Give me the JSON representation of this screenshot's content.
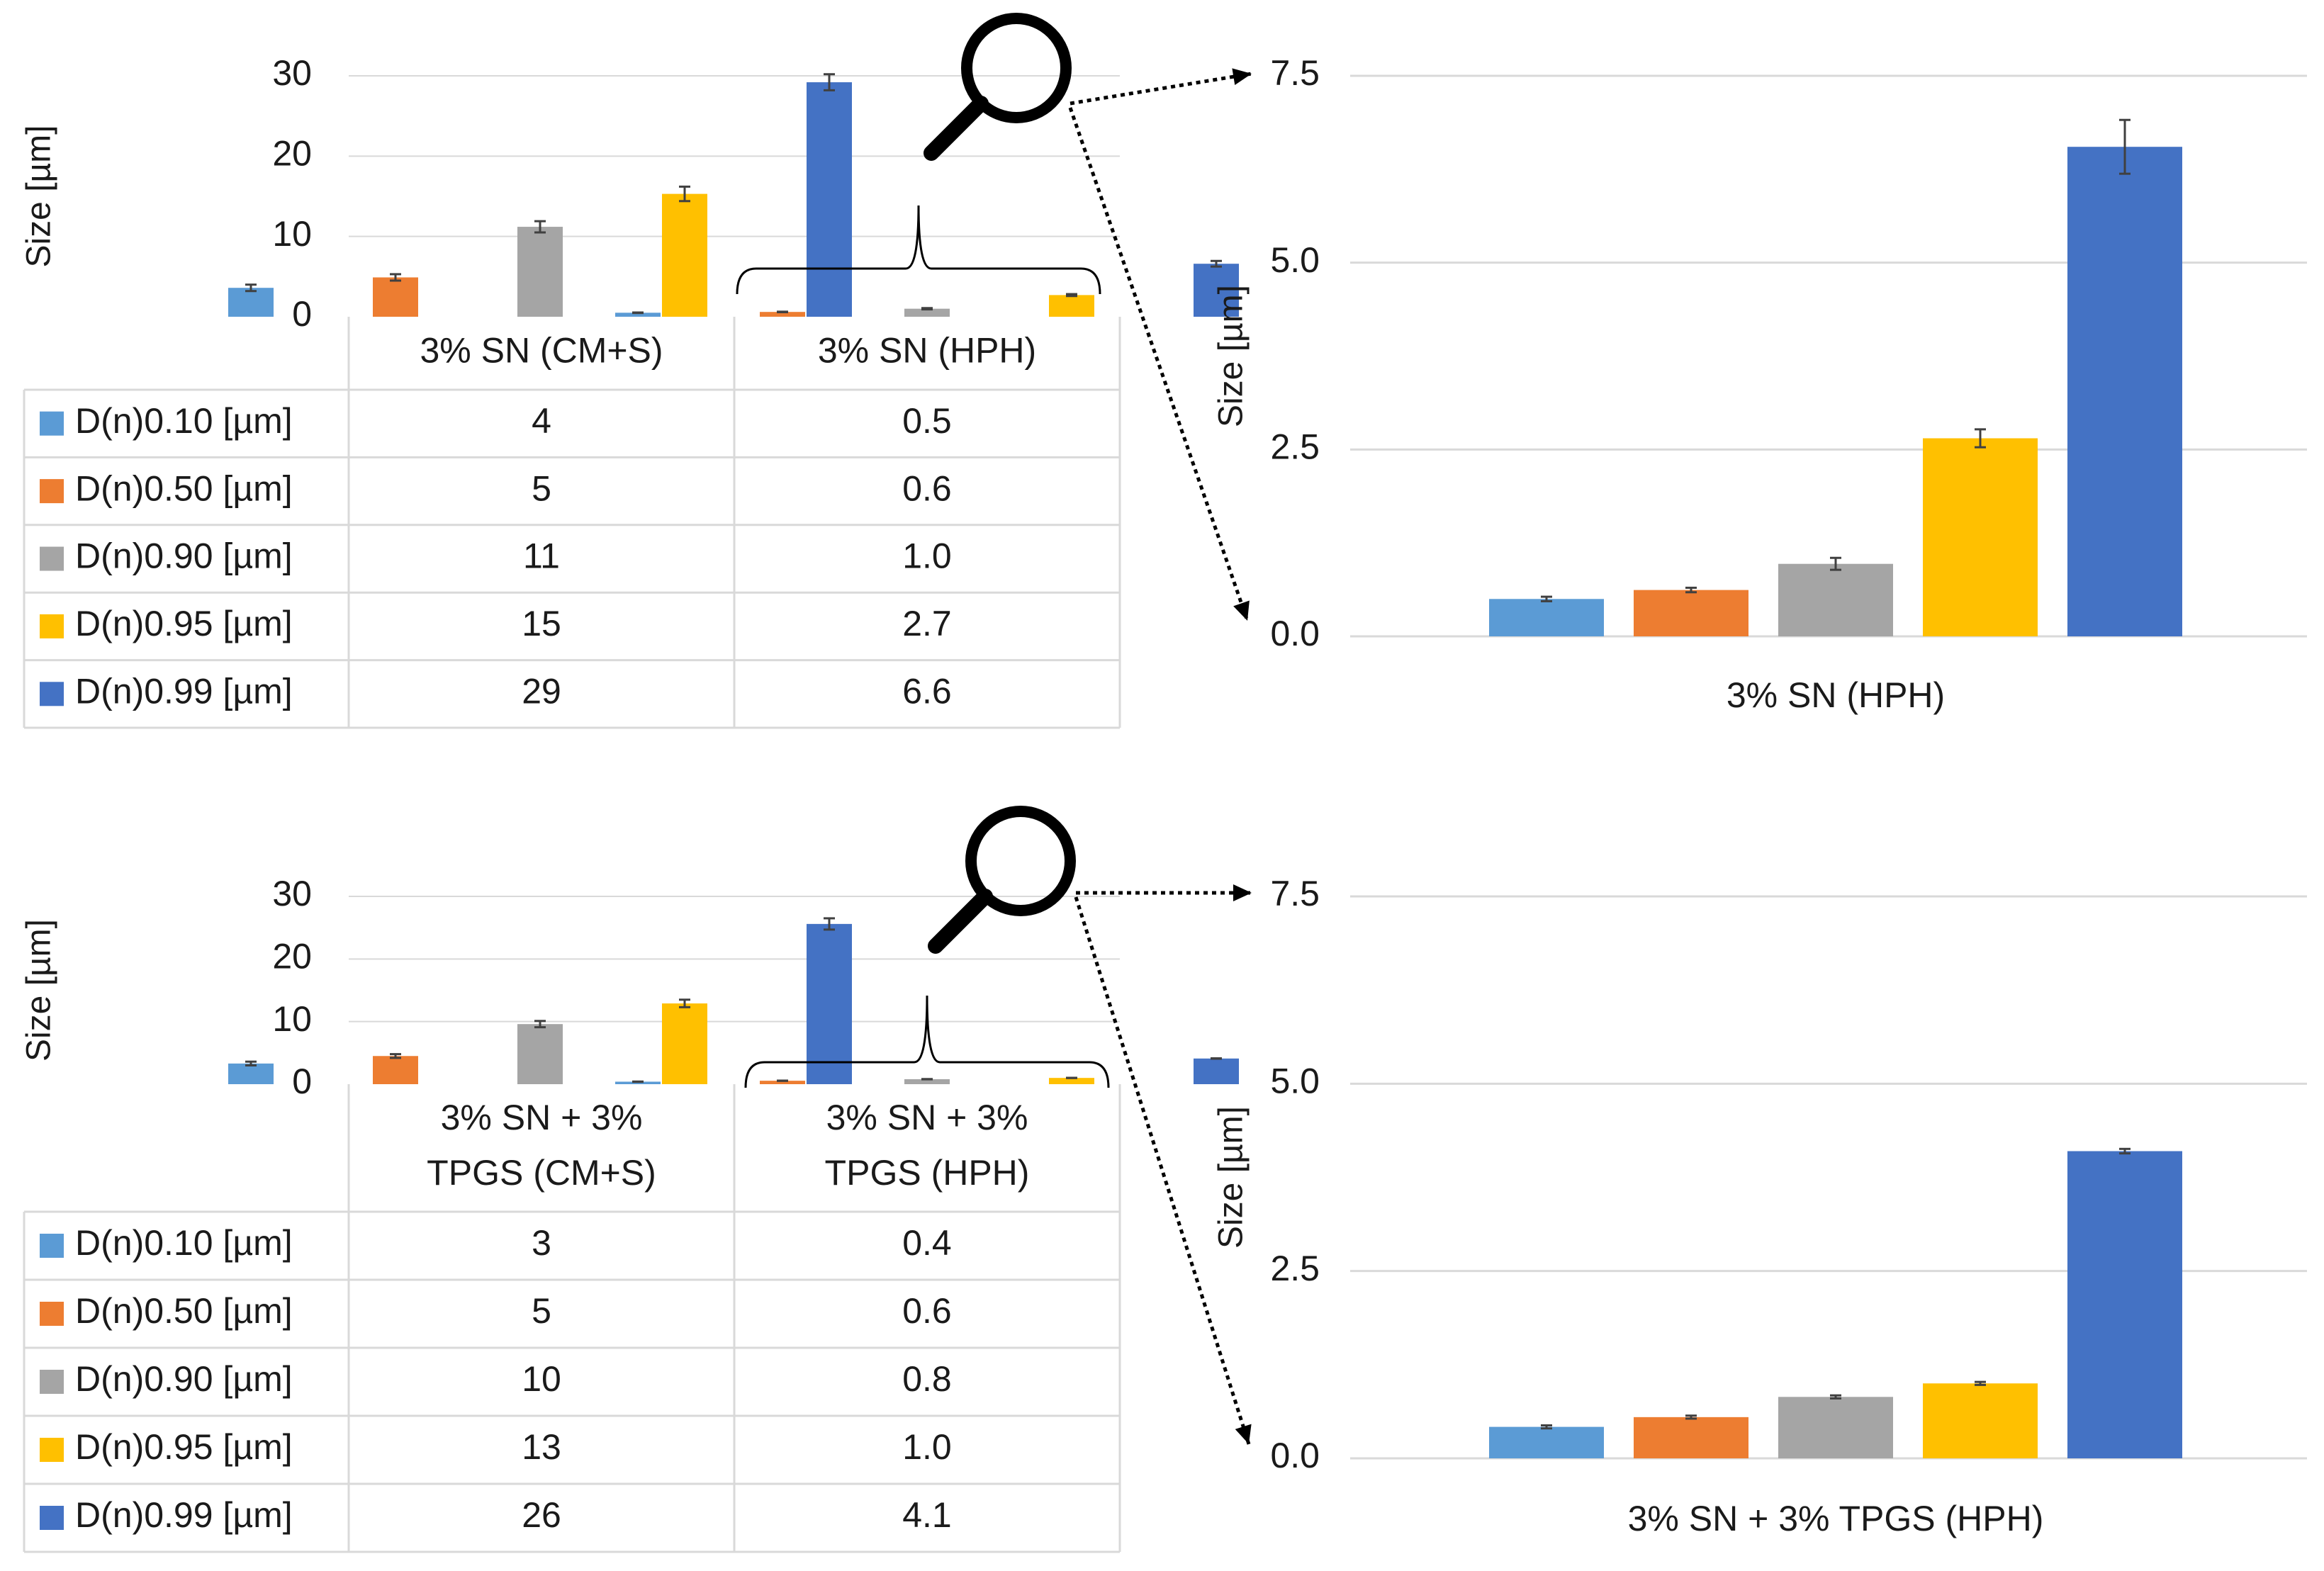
{
  "colors": {
    "d10": "#5B9BD5",
    "d50": "#ED7D31",
    "d90": "#A5A5A5",
    "d95": "#FFC000",
    "d99": "#4472C4",
    "grid": "#D9D9D9",
    "axis_text": "#1a1a1a",
    "error_bar": "#404040"
  },
  "chart_data": [
    {
      "id": "sn_overview",
      "type": "bar",
      "ylabel": "Size [µm]",
      "ylim": [
        0,
        30
      ],
      "yticks": [
        "0",
        "10",
        "20",
        "30"
      ],
      "groups": [
        "3% SN (CM+S)",
        "3% SN (HPH)"
      ],
      "series": [
        {
          "name": "D(n)0.10 [µm]",
          "color_key": "d10",
          "values": [
            3.6,
            0.5
          ],
          "errors": [
            0.4,
            0.03
          ],
          "labels": [
            "4",
            "0.5"
          ]
        },
        {
          "name": "D(n)0.50 [µm]",
          "color_key": "d50",
          "values": [
            4.9,
            0.6
          ],
          "errors": [
            0.4,
            0.03
          ],
          "labels": [
            "5",
            "0.6"
          ]
        },
        {
          "name": "D(n)0.90 [µm]",
          "color_key": "d90",
          "values": [
            11.2,
            1.0
          ],
          "errors": [
            0.7,
            0.08
          ],
          "labels": [
            "11",
            "1.0"
          ]
        },
        {
          "name": "D(n)0.95 [µm]",
          "color_key": "d95",
          "values": [
            15.3,
            2.7
          ],
          "errors": [
            0.9,
            0.12
          ],
          "labels": [
            "15",
            "2.7"
          ]
        },
        {
          "name": "D(n)0.99 [µm]",
          "color_key": "d99",
          "values": [
            29.2,
            6.6
          ],
          "errors": [
            1.0,
            0.35
          ],
          "labels": [
            "29",
            "6.6"
          ]
        }
      ]
    },
    {
      "id": "sn_zoom",
      "type": "bar",
      "ylabel": "Size [µm]",
      "ylim": [
        0,
        7.5
      ],
      "yticks": [
        "0.0",
        "2.5",
        "5.0",
        "7.5"
      ],
      "category": "3% SN (HPH)",
      "series": [
        {
          "name": "D(n)0.10 [µm]",
          "color_key": "d10",
          "value": 0.5,
          "error": 0.03
        },
        {
          "name": "D(n)0.50 [µm]",
          "color_key": "d50",
          "value": 0.62,
          "error": 0.03
        },
        {
          "name": "D(n)0.90 [µm]",
          "color_key": "d90",
          "value": 0.97,
          "error": 0.08
        },
        {
          "name": "D(n)0.95 [µm]",
          "color_key": "d95",
          "value": 2.65,
          "error": 0.12
        },
        {
          "name": "D(n)0.99 [µm]",
          "color_key": "d99",
          "value": 6.55,
          "error": 0.36
        }
      ]
    },
    {
      "id": "sn_tpgs_overview",
      "type": "bar",
      "ylabel": "Size [µm]",
      "ylim": [
        0,
        30
      ],
      "yticks": [
        "0",
        "10",
        "20",
        "30"
      ],
      "groups": [
        "3% SN +  3% TPGS (CM+S)",
        "3% SN + 3% TPGS (HPH)"
      ],
      "groups_lines": [
        [
          "3% SN +  3%",
          "TPGS (CM+S)"
        ],
        [
          "3% SN + 3%",
          "TPGS (HPH)"
        ]
      ],
      "series": [
        {
          "name": "D(n)0.10 [µm]",
          "color_key": "d10",
          "values": [
            3.3,
            0.4
          ],
          "errors": [
            0.3,
            0.02
          ],
          "labels": [
            "3",
            "0.4"
          ]
        },
        {
          "name": "D(n)0.50 [µm]",
          "color_key": "d50",
          "values": [
            4.5,
            0.55
          ],
          "errors": [
            0.3,
            0.02
          ],
          "labels": [
            "5",
            "0.6"
          ]
        },
        {
          "name": "D(n)0.90 [µm]",
          "color_key": "d90",
          "values": [
            9.6,
            0.8
          ],
          "errors": [
            0.5,
            0.02
          ],
          "labels": [
            "10",
            "0.8"
          ]
        },
        {
          "name": "D(n)0.95 [µm]",
          "color_key": "d95",
          "values": [
            12.9,
            1.0
          ],
          "errors": [
            0.6,
            0.02
          ],
          "labels": [
            "13",
            "1.0"
          ]
        },
        {
          "name": "D(n)0.99 [µm]",
          "color_key": "d99",
          "values": [
            25.6,
            4.1
          ],
          "errors": [
            0.9,
            0.03
          ],
          "labels": [
            "26",
            "4.1"
          ]
        }
      ]
    },
    {
      "id": "sn_tpgs_zoom",
      "type": "bar",
      "ylabel": "Size [µm]",
      "ylim": [
        0,
        7.5
      ],
      "yticks": [
        "0.0",
        "2.5",
        "5.0",
        "7.5"
      ],
      "category": "3% SN + 3% TPGS (HPH)",
      "series": [
        {
          "name": "D(n)0.10 [µm]",
          "color_key": "d10",
          "value": 0.42,
          "error": 0.02
        },
        {
          "name": "D(n)0.50 [µm]",
          "color_key": "d50",
          "value": 0.55,
          "error": 0.02
        },
        {
          "name": "D(n)0.90 [µm]",
          "color_key": "d90",
          "value": 0.82,
          "error": 0.02
        },
        {
          "name": "D(n)0.95 [µm]",
          "color_key": "d95",
          "value": 1.0,
          "error": 0.02
        },
        {
          "name": "D(n)0.99 [µm]",
          "color_key": "d99",
          "value": 4.1,
          "error": 0.03
        }
      ]
    }
  ],
  "icons": {
    "magnifier": "magnifier-icon",
    "brace": "curly-brace",
    "arrow": "dotted-arrow"
  }
}
